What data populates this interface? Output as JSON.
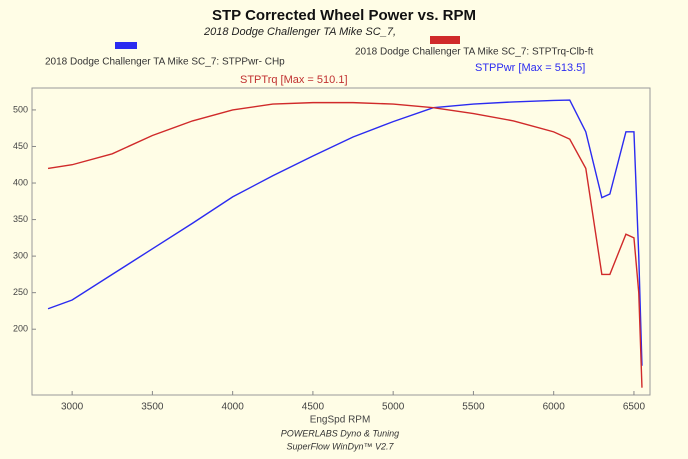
{
  "chart_data": {
    "type": "line",
    "title": "STP Corrected Wheel Power vs. RPM",
    "subtitle": "2018 Dodge Challenger TA Mike SC_7,",
    "x_label": "EngSpd RPM",
    "footer": [
      "POWERLABS Dyno & Tuning",
      "SuperFlow WinDyn™ V2.7"
    ],
    "annotations": [
      "STPTrq [Max = 510.1]",
      "STPPwr [Max = 513.5]"
    ],
    "x": [
      2850,
      3000,
      3250,
      3500,
      3750,
      4000,
      4250,
      4500,
      4750,
      5000,
      5250,
      5500,
      5750,
      6000,
      6100,
      6200,
      6300,
      6350,
      6450,
      6500,
      6530,
      6550
    ],
    "series": [
      {
        "name": "2018 Dodge Challenger TA Mike SC_7: STPPwr- CHp",
        "color": "#2b2bf0",
        "values": [
          228,
          240,
          275,
          310,
          345,
          381,
          410,
          437,
          463,
          484,
          503,
          508,
          511,
          513,
          513.5,
          470,
          380,
          385,
          470,
          470,
          300,
          150
        ]
      },
      {
        "name": "2018 Dodge Challenger TA Mike SC_7: STPTrq-Clb-ft",
        "color": "#d02a2a",
        "values": [
          420,
          425,
          440,
          465,
          485,
          500,
          508,
          510,
          510,
          508,
          503,
          495,
          485,
          470,
          460,
          420,
          275,
          275,
          330,
          325,
          250,
          120
        ]
      }
    ],
    "xlim": [
      2750,
      6600
    ],
    "xticks": [
      3000,
      3500,
      4000,
      4500,
      5000,
      5500,
      6000,
      6500
    ],
    "ylim": [
      110,
      530
    ],
    "yticks": [
      200,
      250,
      300,
      350,
      400,
      450,
      500
    ],
    "grid": false
  }
}
